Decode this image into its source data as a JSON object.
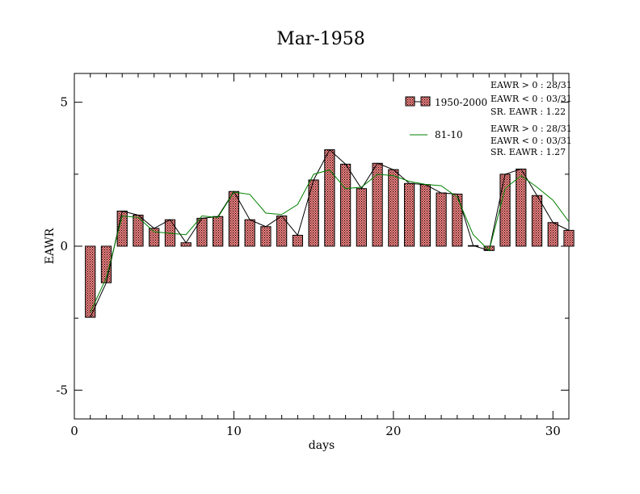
{
  "chart_data": {
    "type": "bar",
    "title": "Mar-1958",
    "xlabel": "days",
    "ylabel": "EAWR",
    "xlim": [
      0,
      31
    ],
    "ylim": [
      -6,
      6
    ],
    "xticks": [
      0,
      10,
      20,
      30
    ],
    "yticks": [
      -5,
      0,
      5
    ],
    "x": [
      1,
      2,
      3,
      4,
      5,
      6,
      7,
      8,
      9,
      10,
      11,
      12,
      13,
      14,
      15,
      16,
      17,
      18,
      19,
      20,
      21,
      22,
      23,
      24,
      25,
      26,
      27,
      28,
      29,
      30,
      31
    ],
    "series": [
      {
        "name": "1950-2000",
        "type": "bar",
        "color": "#f08080",
        "values": [
          -2.47,
          -1.27,
          1.22,
          1.08,
          0.62,
          0.92,
          0.12,
          0.97,
          1.03,
          1.9,
          0.92,
          0.68,
          1.05,
          0.38,
          2.3,
          3.35,
          2.85,
          2.0,
          2.88,
          2.66,
          2.18,
          2.14,
          1.85,
          1.81,
          0.02,
          -0.15,
          2.5,
          2.68,
          1.76,
          0.82,
          0.55
        ]
      },
      {
        "name": "81-10",
        "type": "line",
        "color": "#008000",
        "values": [
          -2.3,
          -1.1,
          1.05,
          1.0,
          0.5,
          0.45,
          0.4,
          1.05,
          1.0,
          1.88,
          1.8,
          1.15,
          1.1,
          1.45,
          2.5,
          2.65,
          2.0,
          2.05,
          2.5,
          2.45,
          2.25,
          2.15,
          2.1,
          1.7,
          0.4,
          -0.15,
          2.0,
          2.45,
          2.05,
          1.6,
          0.85
        ]
      }
    ],
    "legend": {
      "placement": "top-right",
      "entries": [
        {
          "label": "1950-2000",
          "stats": [
            "EAWR > 0 : 28/31",
            "EAWR < 0 : 03/31",
            "SR. EAWR :  1.22"
          ]
        },
        {
          "label": "81-10",
          "stats": [
            "EAWR > 0 : 28/31",
            "EAWR < 0 : 03/31",
            "SR. EAWR :  1.27"
          ]
        }
      ]
    },
    "grid": false
  },
  "colors": {
    "bar_fill": "#f08080",
    "bar_hatch": "#000000",
    "line_1950": "#000000",
    "line_8110": "#008000"
  }
}
